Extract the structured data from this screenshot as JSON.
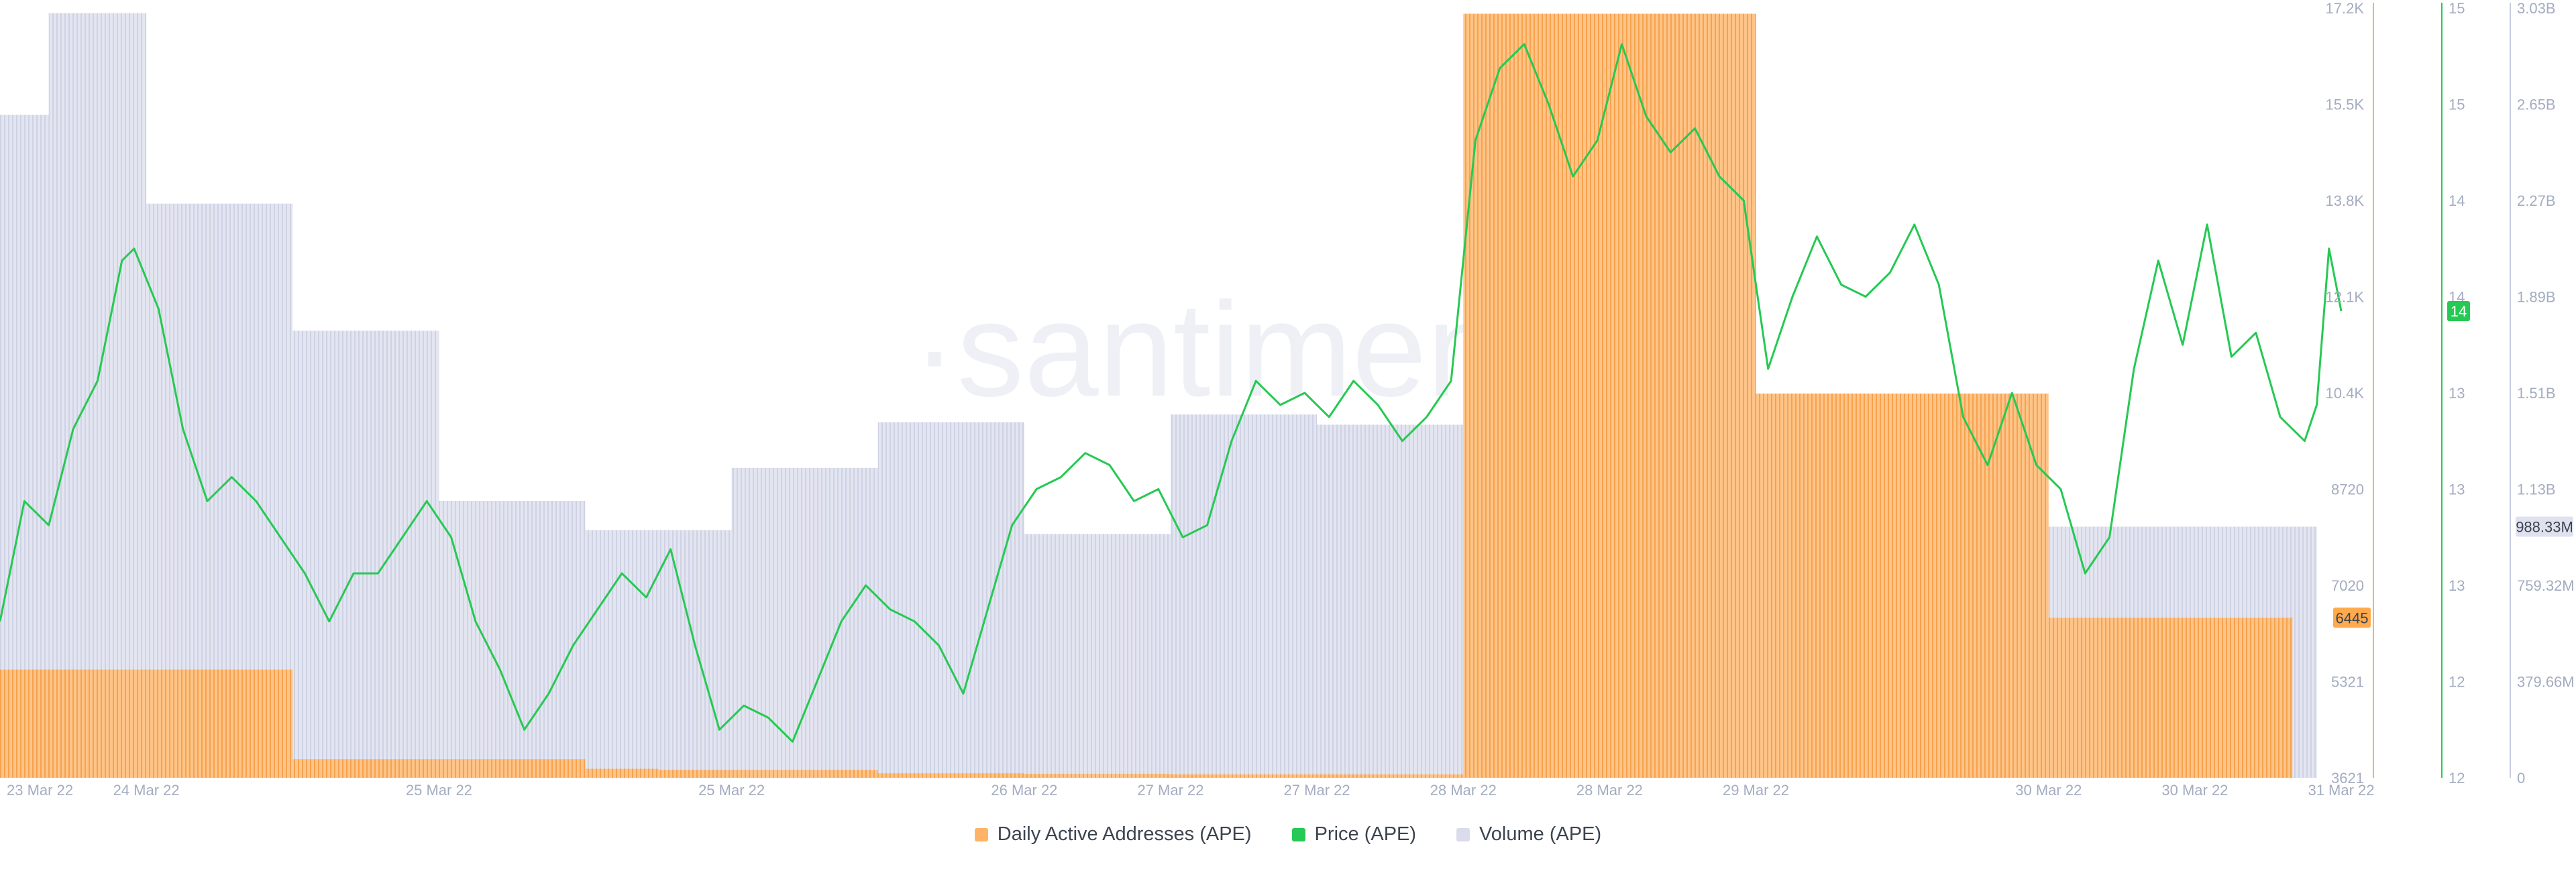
{
  "watermark": "·santiment·",
  "colors": {
    "daa": "#ffb367",
    "price": "#26c953",
    "volume": "#dadcec",
    "axis_text": "#a4acc0",
    "daa_axis": "#f0b860",
    "price_axis": "#26c953",
    "volume_axis": "#c9cde0"
  },
  "legend": [
    {
      "label": "Daily Active Addresses (APE)",
      "color": "#ffb367"
    },
    {
      "label": "Price (APE)",
      "color": "#26c953"
    },
    {
      "label": "Volume (APE)",
      "color": "#dadcec"
    }
  ],
  "chart_data": {
    "type": "bar",
    "grid": false,
    "legend_position": "bottom-center",
    "x_range": [
      "2022-03-23",
      "2022-03-31"
    ],
    "x_ticks": [
      {
        "label": "23 Mar 22",
        "x": "2022-03-23T00:00"
      },
      {
        "label": "24 Mar 22",
        "x": "2022-03-23T12:00"
      },
      {
        "label": "25 Mar 22",
        "x": "2022-03-24T12:00"
      },
      {
        "label": "25 Mar 22",
        "x": "2022-03-25T12:00"
      },
      {
        "label": "26 Mar 22",
        "x": "2022-03-26T12:00"
      },
      {
        "label": "27 Mar 22",
        "x": "2022-03-27T00:00"
      },
      {
        "label": "27 Mar 22",
        "x": "2022-03-27T12:00"
      },
      {
        "label": "28 Mar 22",
        "x": "2022-03-28T00:00"
      },
      {
        "label": "28 Mar 22",
        "x": "2022-03-28T12:00"
      },
      {
        "label": "29 Mar 22",
        "x": "2022-03-29T00:00"
      },
      {
        "label": "30 Mar 22",
        "x": "2022-03-30T00:00"
      },
      {
        "label": "30 Mar 22",
        "x": "2022-03-30T12:00"
      },
      {
        "label": "31 Mar 22",
        "x": "2022-03-31T00:00"
      }
    ],
    "axes": {
      "daa": {
        "ticks": [
          "17.2K",
          "15.5K",
          "13.8K",
          "12.1K",
          "10.4K",
          "8720",
          "7020",
          "5321",
          "3621"
        ],
        "ylim": [
          3621,
          17200
        ],
        "current_label": "6445",
        "current_value": 6445
      },
      "price": {
        "ticks": [
          "15",
          "15",
          "14",
          "14",
          "13",
          "13",
          "13",
          "12",
          "12"
        ],
        "ylim": [
          11.9,
          15.1
        ],
        "current_label": "14",
        "current_value": 13.84
      },
      "volume": {
        "ticks": [
          "3.03B",
          "2.65B",
          "2.27B",
          "1.89B",
          "1.51B",
          "1.13B",
          "759.32M",
          "379.66M",
          "0"
        ],
        "ylim": [
          0,
          3030000000
        ],
        "current_label": "988.33M",
        "current_value": 988330000
      }
    },
    "series": [
      {
        "name": "Daily Active Addresses (APE)",
        "kind": "step-bar",
        "axis": "daa",
        "points": [
          {
            "x": "2022-03-23T00:00",
            "y": 5530
          },
          {
            "x": "2022-03-24T00:00",
            "y": 3950
          },
          {
            "x": "2022-03-25T00:00",
            "y": 3780
          },
          {
            "x": "2022-03-25T06:00",
            "y": 3760
          },
          {
            "x": "2022-03-26T00:00",
            "y": 3700
          },
          {
            "x": "2022-03-26T12:00",
            "y": 3690
          },
          {
            "x": "2022-03-27T00:00",
            "y": 3680
          },
          {
            "x": "2022-03-28T00:00",
            "y": 17100
          },
          {
            "x": "2022-03-29T00:00",
            "y": 10400
          },
          {
            "x": "2022-03-30T00:00",
            "y": 6445
          }
        ],
        "end": "2022-03-30T20:00"
      },
      {
        "name": "Volume (APE)",
        "kind": "step-bar",
        "axis": "volume",
        "points": [
          {
            "x": "2022-03-23T00:00",
            "y": 2610000000
          },
          {
            "x": "2022-03-23T04:00",
            "y": 3010000000
          },
          {
            "x": "2022-03-23T12:00",
            "y": 2260000000
          },
          {
            "x": "2022-03-24T00:00",
            "y": 1760000000
          },
          {
            "x": "2022-03-24T12:00",
            "y": 1090000000
          },
          {
            "x": "2022-03-25T00:00",
            "y": 975000000
          },
          {
            "x": "2022-03-25T12:00",
            "y": 1220000000
          },
          {
            "x": "2022-03-26T00:00",
            "y": 1400000000
          },
          {
            "x": "2022-03-26T12:00",
            "y": 960000000
          },
          {
            "x": "2022-03-27T00:00",
            "y": 1430000000
          },
          {
            "x": "2022-03-27T12:00",
            "y": 1390000000
          },
          {
            "x": "2022-03-28T00:00",
            "y": 1060000000
          },
          {
            "x": "2022-03-28T12:00",
            "y": 890000000
          },
          {
            "x": "2022-03-29T00:00",
            "y": 1220000000
          },
          {
            "x": "2022-03-29T12:00",
            "y": 988330000
          }
        ],
        "end": "2022-03-30T22:00"
      },
      {
        "name": "Price (APE)",
        "kind": "line",
        "axis": "price",
        "points": [
          {
            "x": "2022-03-23T00:00",
            "y": 12.55
          },
          {
            "x": "2022-03-23T02:00",
            "y": 13.05
          },
          {
            "x": "2022-03-23T04:00",
            "y": 12.95
          },
          {
            "x": "2022-03-23T06:00",
            "y": 13.35
          },
          {
            "x": "2022-03-23T08:00",
            "y": 13.55
          },
          {
            "x": "2022-03-23T10:00",
            "y": 14.05
          },
          {
            "x": "2022-03-23T11:00",
            "y": 14.1
          },
          {
            "x": "2022-03-23T13:00",
            "y": 13.85
          },
          {
            "x": "2022-03-23T15:00",
            "y": 13.35
          },
          {
            "x": "2022-03-23T17:00",
            "y": 13.05
          },
          {
            "x": "2022-03-23T19:00",
            "y": 13.15
          },
          {
            "x": "2022-03-23T21:00",
            "y": 13.05
          },
          {
            "x": "2022-03-23T23:00",
            "y": 12.9
          },
          {
            "x": "2022-03-24T01:00",
            "y": 12.75
          },
          {
            "x": "2022-03-24T03:00",
            "y": 12.55
          },
          {
            "x": "2022-03-24T05:00",
            "y": 12.75
          },
          {
            "x": "2022-03-24T07:00",
            "y": 12.75
          },
          {
            "x": "2022-03-24T09:00",
            "y": 12.9
          },
          {
            "x": "2022-03-24T11:00",
            "y": 13.05
          },
          {
            "x": "2022-03-24T13:00",
            "y": 12.9
          },
          {
            "x": "2022-03-24T15:00",
            "y": 12.55
          },
          {
            "x": "2022-03-24T17:00",
            "y": 12.35
          },
          {
            "x": "2022-03-24T19:00",
            "y": 12.1
          },
          {
            "x": "2022-03-24T21:00",
            "y": 12.25
          },
          {
            "x": "2022-03-24T23:00",
            "y": 12.45
          },
          {
            "x": "2022-03-25T01:00",
            "y": 12.6
          },
          {
            "x": "2022-03-25T03:00",
            "y": 12.75
          },
          {
            "x": "2022-03-25T05:00",
            "y": 12.65
          },
          {
            "x": "2022-03-25T07:00",
            "y": 12.85
          },
          {
            "x": "2022-03-25T09:00",
            "y": 12.45
          },
          {
            "x": "2022-03-25T11:00",
            "y": 12.1
          },
          {
            "x": "2022-03-25T13:00",
            "y": 12.2
          },
          {
            "x": "2022-03-25T15:00",
            "y": 12.15
          },
          {
            "x": "2022-03-25T17:00",
            "y": 12.05
          },
          {
            "x": "2022-03-25T19:00",
            "y": 12.3
          },
          {
            "x": "2022-03-25T21:00",
            "y": 12.55
          },
          {
            "x": "2022-03-25T23:00",
            "y": 12.7
          },
          {
            "x": "2022-03-26T01:00",
            "y": 12.6
          },
          {
            "x": "2022-03-26T03:00",
            "y": 12.55
          },
          {
            "x": "2022-03-26T05:00",
            "y": 12.45
          },
          {
            "x": "2022-03-26T07:00",
            "y": 12.25
          },
          {
            "x": "2022-03-26T09:00",
            "y": 12.6
          },
          {
            "x": "2022-03-26T11:00",
            "y": 12.95
          },
          {
            "x": "2022-03-26T13:00",
            "y": 13.1
          },
          {
            "x": "2022-03-26T15:00",
            "y": 13.15
          },
          {
            "x": "2022-03-26T17:00",
            "y": 13.25
          },
          {
            "x": "2022-03-26T19:00",
            "y": 13.2
          },
          {
            "x": "2022-03-26T21:00",
            "y": 13.05
          },
          {
            "x": "2022-03-26T23:00",
            "y": 13.1
          },
          {
            "x": "2022-03-27T01:00",
            "y": 12.9
          },
          {
            "x": "2022-03-27T03:00",
            "y": 12.95
          },
          {
            "x": "2022-03-27T05:00",
            "y": 13.3
          },
          {
            "x": "2022-03-27T07:00",
            "y": 13.55
          },
          {
            "x": "2022-03-27T09:00",
            "y": 13.45
          },
          {
            "x": "2022-03-27T11:00",
            "y": 13.5
          },
          {
            "x": "2022-03-27T13:00",
            "y": 13.4
          },
          {
            "x": "2022-03-27T15:00",
            "y": 13.55
          },
          {
            "x": "2022-03-27T17:00",
            "y": 13.45
          },
          {
            "x": "2022-03-27T19:00",
            "y": 13.3
          },
          {
            "x": "2022-03-27T21:00",
            "y": 13.4
          },
          {
            "x": "2022-03-27T23:00",
            "y": 13.55
          },
          {
            "x": "2022-03-28T01:00",
            "y": 14.55
          },
          {
            "x": "2022-03-28T03:00",
            "y": 14.85
          },
          {
            "x": "2022-03-28T05:00",
            "y": 14.95
          },
          {
            "x": "2022-03-28T07:00",
            "y": 14.7
          },
          {
            "x": "2022-03-28T09:00",
            "y": 14.4
          },
          {
            "x": "2022-03-28T11:00",
            "y": 14.55
          },
          {
            "x": "2022-03-28T13:00",
            "y": 14.95
          },
          {
            "x": "2022-03-28T15:00",
            "y": 14.65
          },
          {
            "x": "2022-03-28T17:00",
            "y": 14.5
          },
          {
            "x": "2022-03-28T19:00",
            "y": 14.6
          },
          {
            "x": "2022-03-28T21:00",
            "y": 14.4
          },
          {
            "x": "2022-03-28T23:00",
            "y": 14.3
          },
          {
            "x": "2022-03-29T01:00",
            "y": 13.6
          },
          {
            "x": "2022-03-29T03:00",
            "y": 13.9
          },
          {
            "x": "2022-03-29T05:00",
            "y": 14.15
          },
          {
            "x": "2022-03-29T07:00",
            "y": 13.95
          },
          {
            "x": "2022-03-29T09:00",
            "y": 13.9
          },
          {
            "x": "2022-03-29T11:00",
            "y": 14.0
          },
          {
            "x": "2022-03-29T13:00",
            "y": 14.2
          },
          {
            "x": "2022-03-29T15:00",
            "y": 13.95
          },
          {
            "x": "2022-03-29T17:00",
            "y": 13.4
          },
          {
            "x": "2022-03-29T19:00",
            "y": 13.2
          },
          {
            "x": "2022-03-29T21:00",
            "y": 13.5
          },
          {
            "x": "2022-03-29T23:00",
            "y": 13.2
          },
          {
            "x": "2022-03-30T01:00",
            "y": 13.1
          },
          {
            "x": "2022-03-30T03:00",
            "y": 12.75
          },
          {
            "x": "2022-03-30T05:00",
            "y": 12.9
          },
          {
            "x": "2022-03-30T07:00",
            "y": 13.6
          },
          {
            "x": "2022-03-30T09:00",
            "y": 14.05
          },
          {
            "x": "2022-03-30T11:00",
            "y": 13.7
          },
          {
            "x": "2022-03-30T13:00",
            "y": 14.2
          },
          {
            "x": "2022-03-30T15:00",
            "y": 13.65
          },
          {
            "x": "2022-03-30T17:00",
            "y": 13.75
          },
          {
            "x": "2022-03-30T19:00",
            "y": 13.4
          },
          {
            "x": "2022-03-30T21:00",
            "y": 13.3
          },
          {
            "x": "2022-03-30T22:00",
            "y": 13.45
          },
          {
            "x": "2022-03-30T23:00",
            "y": 14.1
          },
          {
            "x": "2022-03-31T00:00",
            "y": 13.84
          }
        ]
      }
    ]
  }
}
